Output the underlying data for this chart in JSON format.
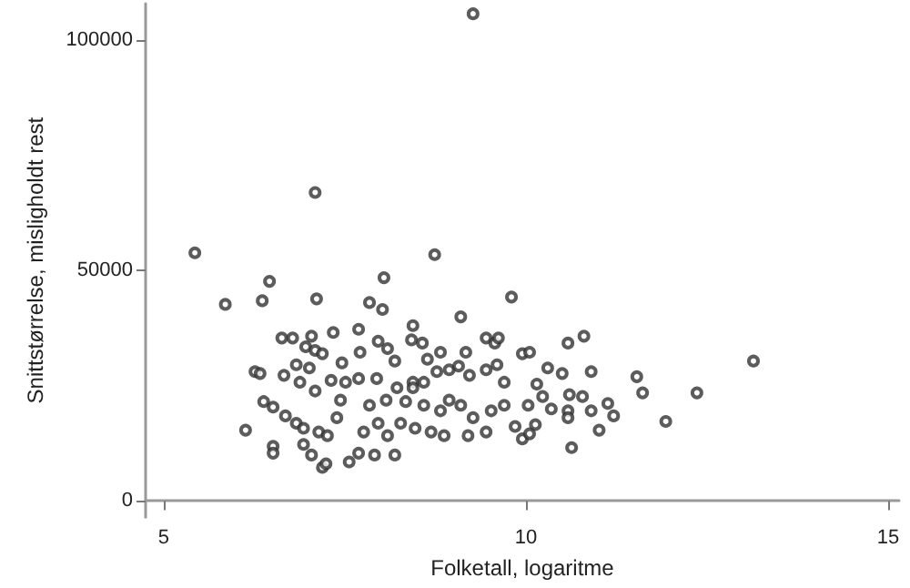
{
  "chart_data": {
    "type": "scatter",
    "xlabel": "Folketall, logaritme",
    "ylabel": "Snittstørrelse, misligholdt rest",
    "xlim": [
      4.75,
      15.15
    ],
    "ylim": [
      -3500,
      108000
    ],
    "xticks": [
      5,
      10,
      15
    ],
    "yticks": [
      0,
      50000,
      100000
    ],
    "grid": false,
    "marker": "circle",
    "series": [
      {
        "color": "#333333",
        "x": [
          9.27,
          7.09,
          5.43,
          5.85,
          6.36,
          6.46,
          7.11,
          8.04,
          7.84,
          8.02,
          8.74,
          9.1,
          6.63,
          6.78,
          7.04,
          7.34,
          7.69,
          8.44,
          6.96,
          7.09,
          7.19,
          7.46,
          7.71,
          7.96,
          8.09,
          8.19,
          8.42,
          8.57,
          8.64,
          8.82,
          8.94,
          9.17,
          9.45,
          9.57,
          9.62,
          6.26,
          6.33,
          6.66,
          6.83,
          7.01,
          6.88,
          7.09,
          7.31,
          7.51,
          7.69,
          7.94,
          8.22,
          8.44,
          8.59,
          8.77,
          9.07,
          9.22,
          9.45,
          6.38,
          6.51,
          6.68,
          6.13,
          6.51,
          6.51,
          6.83,
          6.93,
          7.14,
          7.26,
          7.39,
          7.44,
          6.93,
          7.04,
          7.19,
          7.24,
          7.56,
          7.69,
          7.91,
          8.19,
          7.76,
          7.96,
          8.09,
          7.84,
          8.07,
          8.34,
          8.27,
          8.47,
          8.69,
          8.87,
          8.44,
          8.59,
          8.82,
          8.94,
          9.1,
          9.27,
          9.52,
          9.7,
          9.2,
          9.45,
          9.8,
          10.58,
          10.8,
          9.95,
          10.05,
          10.3,
          10.5,
          10.9,
          11.53,
          11.61,
          12.36,
          13.14,
          11.93,
          10.6,
          10.78,
          11.13,
          11.21,
          10.9,
          11.01,
          10.58,
          10.58,
          10.63,
          10.15,
          10.23,
          10.35,
          10.03,
          9.85,
          9.95,
          10.05,
          10.13,
          9.6,
          9.7
        ],
        "values": [
          105800,
          67000,
          53900,
          42700,
          43500,
          47700,
          43900,
          48500,
          43100,
          41600,
          53500,
          40000,
          35400,
          35400,
          35800,
          36600,
          37300,
          38100,
          33500,
          32700,
          32000,
          30000,
          32300,
          34700,
          33100,
          30400,
          35000,
          34300,
          30800,
          32300,
          28500,
          32300,
          35400,
          34300,
          35400,
          28100,
          27700,
          27300,
          29600,
          28900,
          25800,
          23900,
          26200,
          25800,
          26600,
          26600,
          24600,
          25800,
          25800,
          28100,
          29300,
          27300,
          28500,
          21600,
          20400,
          18500,
          15400,
          11900,
          10400,
          16900,
          15800,
          15000,
          14200,
          18100,
          21900,
          12300,
          10000,
          7300,
          8100,
          8500,
          10400,
          10000,
          10000,
          15000,
          16900,
          14200,
          20800,
          21900,
          21600,
          16900,
          15800,
          15000,
          14200,
          24600,
          20800,
          19600,
          21900,
          20800,
          18100,
          19600,
          20800,
          14200,
          15000,
          44300,
          34300,
          35800,
          32000,
          32300,
          28900,
          27700,
          28100,
          27000,
          23500,
          23500,
          30400,
          17300,
          23100,
          22700,
          21200,
          18500,
          19600,
          15400,
          19600,
          18100,
          11600,
          25400,
          22700,
          20000,
          20800,
          16200,
          13500,
          14600,
          16600,
          29600,
          25800
        ]
      }
    ]
  }
}
